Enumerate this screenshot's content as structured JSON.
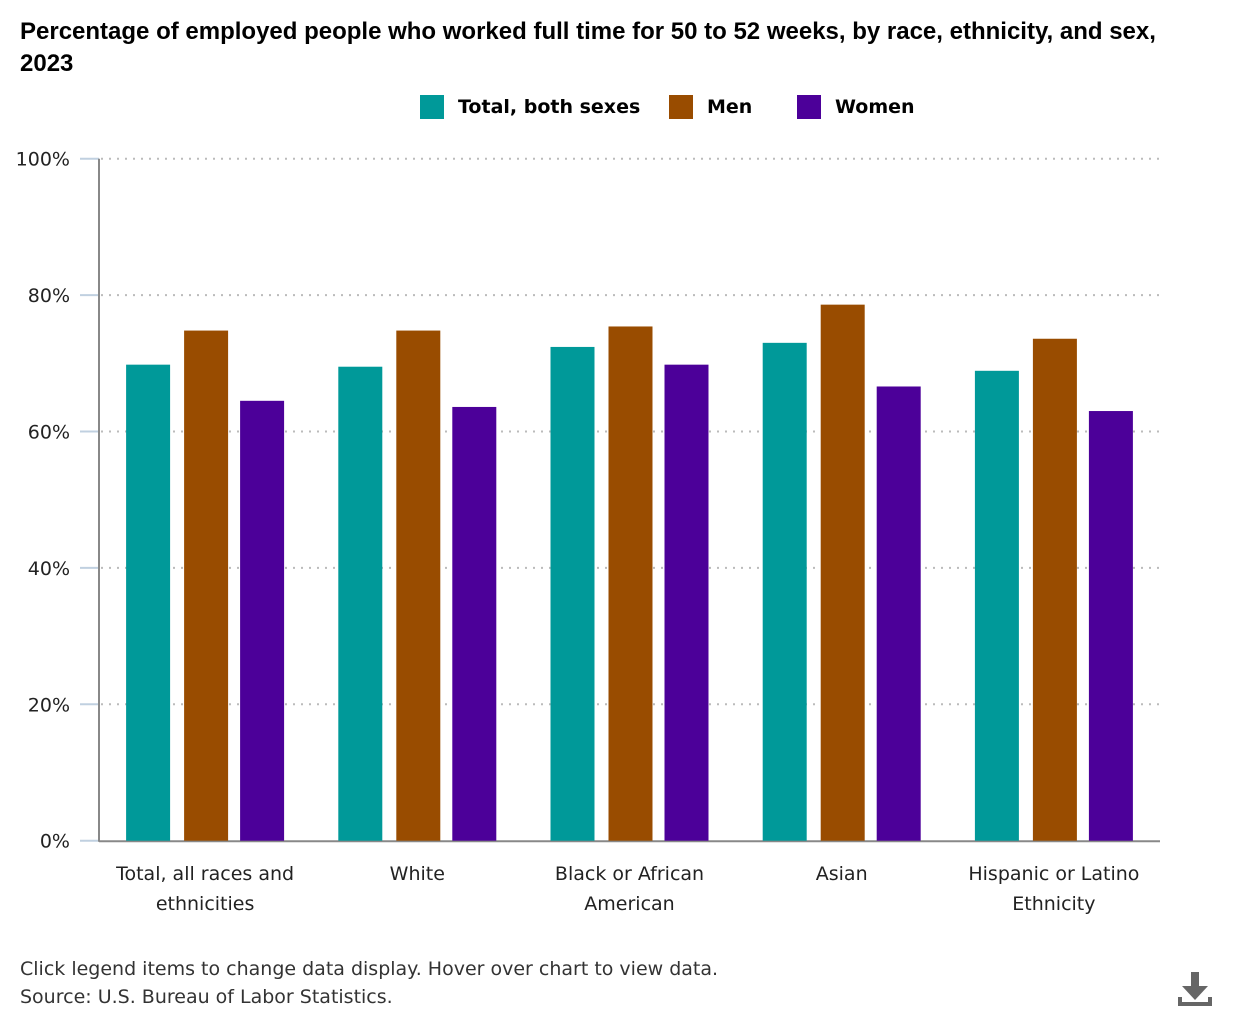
{
  "chart_data": {
    "type": "bar",
    "title": "Percentage of employed people who worked full time for 50 to 52 weeks, by race, ethnicity, and sex, 2023",
    "xlabel": "",
    "ylabel": "",
    "ylim": [
      0,
      100
    ],
    "yticks": [
      0,
      20,
      40,
      60,
      80,
      100
    ],
    "ytick_labels": [
      "0%",
      "20%",
      "40%",
      "60%",
      "80%",
      "100%"
    ],
    "grid": true,
    "legend_position": "top-center",
    "categories": [
      [
        "Total, all races and",
        "ethnicities"
      ],
      [
        "White"
      ],
      [
        "Black or African",
        "American"
      ],
      [
        "Asian"
      ],
      [
        "Hispanic or Latino",
        "Ethnicity"
      ]
    ],
    "series": [
      {
        "name": "Total, both sexes",
        "color": "#009999",
        "values": [
          69.8,
          69.5,
          72.4,
          73.0,
          68.9
        ]
      },
      {
        "name": "Men",
        "color": "#994c00",
        "values": [
          74.8,
          74.8,
          75.4,
          78.6,
          73.6
        ]
      },
      {
        "name": "Women",
        "color": "#4c0099",
        "values": [
          64.5,
          63.6,
          69.8,
          66.6,
          63.0
        ]
      }
    ]
  },
  "footer": {
    "note": "Click legend items to change data display. Hover over chart to view data.",
    "source": "Source: U.S. Bureau of Labor Statistics."
  },
  "icons": {
    "download": "download-icon"
  }
}
